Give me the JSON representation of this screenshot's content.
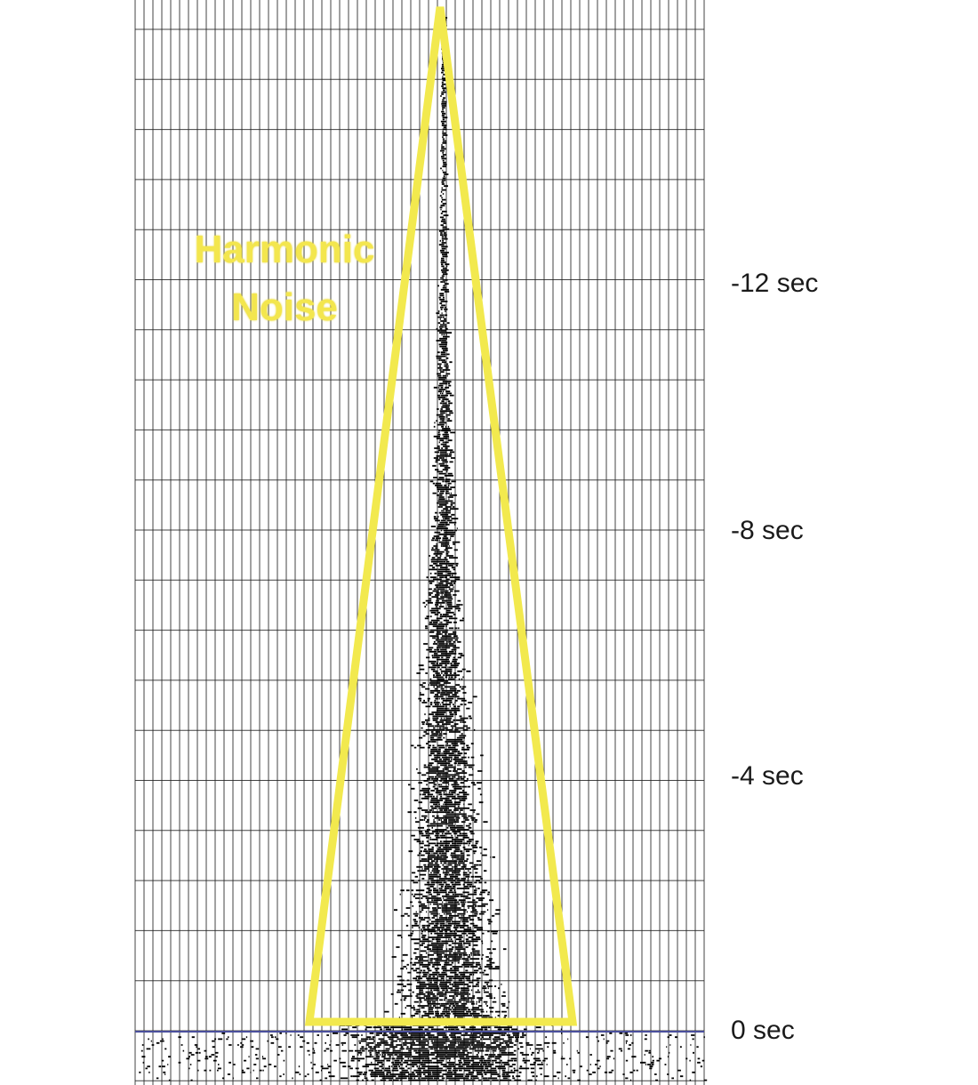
{
  "time_axis": {
    "labels": [
      "-12 sec",
      "-8 sec",
      "-4 sec",
      "0 sec"
    ]
  },
  "annotation": {
    "line1": "Harmonic",
    "line2": "Noise"
  },
  "colors": {
    "grid": "#222222",
    "signal": "#000000",
    "triangle": "#f2e94e",
    "annotation_text": "#f3e64e",
    "zero_line": "#4a4f9c",
    "background": "#ffffff"
  }
}
